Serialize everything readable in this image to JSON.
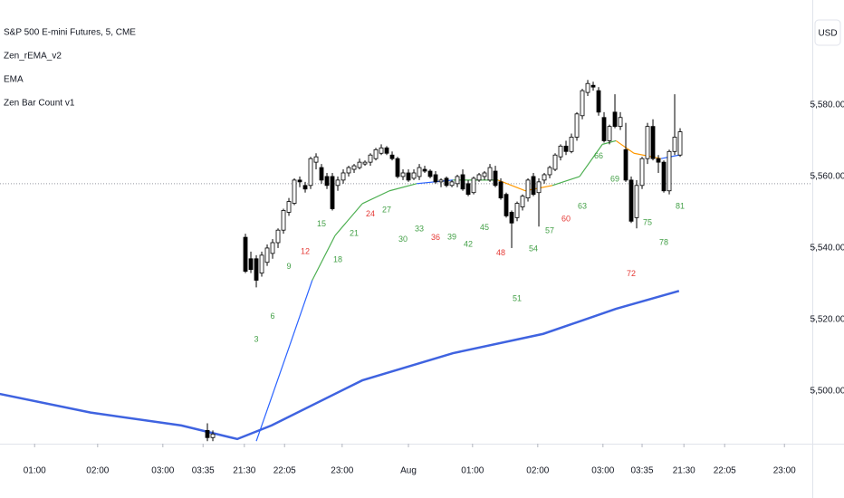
{
  "chart_data": {
    "type": "candlestick",
    "title": "S&P 500 E-mini Futures, 5, CME",
    "unit_label": "USD",
    "xlim": [
      -44.17,
      105.33
    ],
    "ylim": [
      5485.3,
      5609.35
    ],
    "xticks": [
      {
        "value": -37.8,
        "label": "01:00"
      },
      {
        "value": -26.2,
        "label": "02:00"
      },
      {
        "value": -14.2,
        "label": "03:00"
      },
      {
        "value": -6.8,
        "label": "03:35"
      },
      {
        "value": 0.8,
        "label": "21:30"
      },
      {
        "value": 8.2,
        "label": "22:05"
      },
      {
        "value": 18.8,
        "label": "23:00"
      },
      {
        "value": 31,
        "label": "Aug"
      },
      {
        "value": 42.8,
        "label": "01:00"
      },
      {
        "value": 54.8,
        "label": "02:00"
      },
      {
        "value": 66.8,
        "label": "03:00"
      },
      {
        "value": 74,
        "label": "03:35"
      },
      {
        "value": 81.7,
        "label": "21:30"
      },
      {
        "value": 89.2,
        "label": "22:05"
      },
      {
        "value": 100.2,
        "label": "23:00"
      }
    ],
    "yticks": [
      {
        "value": 5500,
        "label": "5,500.00"
      },
      {
        "value": 5520,
        "label": "5,520.00"
      },
      {
        "value": 5540,
        "label": "5,540.00"
      },
      {
        "value": 5560,
        "label": "5,560.00"
      },
      {
        "value": 5580,
        "label": "5,580.00"
      }
    ],
    "price_line": 5558,
    "candles": {
      "up_color": "#ffffff",
      "down_color": "#000000",
      "border_color": "#000000",
      "x": [
        -6,
        -5,
        1,
        2,
        3,
        4,
        5,
        6,
        7,
        8,
        9,
        10,
        11,
        12,
        13,
        14,
        15,
        16,
        17,
        18,
        19,
        20,
        21,
        22,
        23,
        24,
        25,
        26,
        27,
        28,
        29,
        30,
        31,
        32,
        33,
        34,
        35,
        36,
        37,
        38,
        39,
        40,
        41,
        42,
        43,
        44,
        45,
        46,
        47,
        48,
        49,
        50,
        51,
        52,
        53,
        54,
        55,
        56,
        57,
        58,
        59,
        60,
        61,
        62,
        63,
        64,
        65,
        66,
        67,
        68,
        69,
        70,
        71,
        72,
        73,
        74,
        75,
        76,
        77,
        78,
        79,
        80,
        81
      ],
      "open": [
        5489,
        5487,
        5543,
        5537,
        5537,
        5533,
        5536,
        5538.5,
        5541.5,
        5545,
        5550,
        5552.5,
        5559,
        5557.5,
        5557.5,
        5564,
        5562.5,
        5560,
        5560,
        5557.5,
        5559,
        5561,
        5562,
        5562.5,
        5563.5,
        5564,
        5565,
        5566.5,
        5568,
        5566,
        5565,
        5560,
        5561,
        5559.5,
        5560,
        5562,
        5561.5,
        5560.5,
        5558.5,
        5559.5,
        5557.5,
        5558,
        5560.5,
        5558,
        5555.5,
        5559,
        5560,
        5559,
        5561.5,
        5558.5,
        5555,
        5550,
        5548.5,
        5551.5,
        5554,
        5560,
        5555.5,
        5559,
        5560.5,
        5562,
        5565.5,
        5568.5,
        5567,
        5571,
        5577,
        5583.5,
        5585.5,
        5584,
        5576.5,
        5570,
        5578,
        5574,
        5567.5,
        5559,
        5548.5,
        5557.5,
        5565,
        5574,
        5565,
        5564,
        5556,
        5567,
        5566
      ],
      "high": [
        5491,
        5489,
        5544,
        5539,
        5538,
        5539,
        5541,
        5542.5,
        5545.5,
        5551,
        5554,
        5559.5,
        5560,
        5558.5,
        5565.5,
        5566.5,
        5563.5,
        5561,
        5561,
        5560,
        5562,
        5563,
        5563.5,
        5565,
        5564.5,
        5566.5,
        5568,
        5569,
        5568.5,
        5567,
        5565.5,
        5562,
        5562,
        5562,
        5563.5,
        5563,
        5562,
        5561.5,
        5559.5,
        5560,
        5559,
        5560.5,
        5562,
        5559,
        5560,
        5561,
        5561.5,
        5563.5,
        5563,
        5559.5,
        5555.5,
        5550.5,
        5553,
        5555,
        5559.5,
        5561,
        5559.5,
        5561,
        5563,
        5566.5,
        5569,
        5570,
        5572,
        5578,
        5584.5,
        5587,
        5586.5,
        5585,
        5578,
        5574.5,
        5583,
        5578,
        5575,
        5560,
        5559,
        5565.5,
        5575,
        5576,
        5566,
        5564.5,
        5567.5,
        5583,
        5573.5
      ],
      "low": [
        5486,
        5486,
        5533,
        5533,
        5529,
        5532,
        5535,
        5537,
        5540,
        5544,
        5549,
        5552,
        5557,
        5555.5,
        5556.5,
        5562,
        5558,
        5556.5,
        5550.5,
        5556,
        5558,
        5560,
        5561,
        5562,
        5563,
        5563,
        5564.5,
        5566,
        5566,
        5564.5,
        5559.5,
        5559,
        5558.5,
        5559,
        5559,
        5561,
        5559.5,
        5558,
        5557,
        5557,
        5557,
        5557,
        5556,
        5554.5,
        5555,
        5558.5,
        5559,
        5558.5,
        5557,
        5553.5,
        5548.5,
        5540,
        5547.5,
        5550.5,
        5553,
        5554.5,
        5546,
        5558,
        5559.5,
        5561.5,
        5564.5,
        5566,
        5566.5,
        5570,
        5576,
        5582.5,
        5584,
        5577,
        5569.5,
        5569,
        5573.5,
        5573,
        5558.5,
        5547,
        5545.5,
        5556.5,
        5563.5,
        5564.5,
        5561,
        5555.5,
        5555,
        5566,
        5565.5
      ],
      "close": [
        5487,
        5488,
        5533.5,
        5534,
        5531,
        5538,
        5540,
        5541.5,
        5545,
        5550.5,
        5553,
        5559,
        5558.5,
        5556.5,
        5565,
        5565.5,
        5559,
        5557.5,
        5551,
        5559,
        5561,
        5562.5,
        5563,
        5564,
        5564,
        5566,
        5567.5,
        5568,
        5566.5,
        5565,
        5560,
        5561,
        5559,
        5561,
        5562.5,
        5561.5,
        5560,
        5558.5,
        5559,
        5557.5,
        5558.5,
        5560,
        5556.5,
        5555,
        5559.5,
        5560.5,
        5561,
        5562.5,
        5557.5,
        5554,
        5549,
        5547,
        5552.5,
        5554.5,
        5559,
        5555,
        5558.5,
        5560.5,
        5562.5,
        5566,
        5568.5,
        5567,
        5571,
        5577.5,
        5584,
        5586,
        5585,
        5578,
        5570,
        5574,
        5574,
        5576.5,
        5559,
        5547.5,
        5557.5,
        5565,
        5574,
        5565,
        5564,
        5556,
        5567,
        5571,
        5572.5
      ]
    },
    "series": [
      {
        "name": "Zen_rEMA_v2",
        "x": [
          3,
          9.2,
          13.3,
          17.5,
          22.5,
          27.5,
          32.5,
          39.2,
          47.5,
          52.5,
          57.5,
          62.5,
          66.7,
          69.2,
          72.5,
          77.5,
          80.8
        ],
        "values": [
          5486,
          5513,
          5531,
          5543.5,
          5552.4,
          5556,
          5558,
          5559,
          5559,
          5556,
          5557.5,
          5560,
          5569,
          5570,
          5566.5,
          5565,
          5566
        ],
        "colors": [
          "#2962ff",
          "#2962ff",
          "#4caf50",
          "#4caf50",
          "#4caf50",
          "#4caf50",
          "#2962ff",
          "#4caf50",
          "#ff9800",
          "#ff9800",
          "#4caf50",
          "#4caf50",
          "#4caf50",
          "#ff9800",
          "#ff9800",
          "#2962ff",
          "#2962ff"
        ]
      },
      {
        "name": "EMA",
        "color": "#3f63e0",
        "x": [
          -44.2,
          -27.5,
          -10.8,
          -0.5,
          5.8,
          22.5,
          39.2,
          55.8,
          69.2,
          80.8
        ],
        "values": [
          5499.2,
          5494,
          5490.4,
          5486.6,
          5490.4,
          5503,
          5510.6,
          5516,
          5523,
          5528
        ]
      },
      {
        "name": "Zen Bar Count v1",
        "values": [
          3,
          6,
          9,
          12,
          15,
          18,
          21,
          24,
          27,
          30,
          33,
          36,
          39,
          42,
          45,
          48,
          51,
          54,
          57,
          60,
          63,
          66,
          69,
          72,
          75,
          78,
          81
        ],
        "y": [
          5514.4,
          5520.8,
          5534.7,
          5539,
          5546.6,
          5536.7,
          5544,
          5549.4,
          5550.6,
          5542.3,
          5545.3,
          5542.8,
          5543,
          5541,
          5545.6,
          5538.5,
          5525.8,
          5539.7,
          5544.8,
          5548,
          5551.6,
          5565.6,
          5559.2,
          5532.7,
          5547,
          5541.5,
          5551.6
        ],
        "colors": [
          "#43a047",
          "#43a047",
          "#43a047",
          "#e53935",
          "#43a047",
          "#43a047",
          "#43a047",
          "#e53935",
          "#43a047",
          "#43a047",
          "#43a047",
          "#e53935",
          "#43a047",
          "#43a047",
          "#43a047",
          "#e53935",
          "#43a047",
          "#43a047",
          "#43a047",
          "#e53935",
          "#43a047",
          "#43a047",
          "#43a047",
          "#e53935",
          "#43a047",
          "#43a047",
          "#43a047"
        ]
      }
    ]
  }
}
